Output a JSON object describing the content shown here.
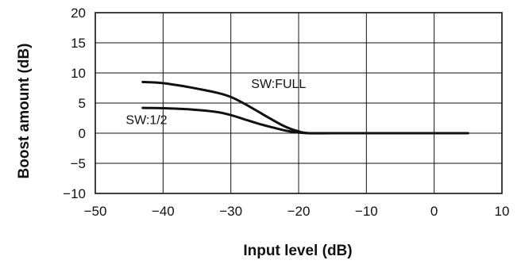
{
  "chart_data": {
    "type": "line",
    "xlabel": "Input level (dB)",
    "ylabel": "Boost amount (dB)",
    "xlim": [
      -50,
      10
    ],
    "ylim": [
      -10,
      20
    ],
    "xticks": [
      -50,
      -40,
      -30,
      -20,
      -10,
      0,
      10
    ],
    "yticks": [
      -10,
      -5,
      0,
      5,
      10,
      15,
      20
    ],
    "xtick_labels": [
      "−50",
      "−40",
      "−30",
      "−20",
      "−10",
      "0",
      "10"
    ],
    "ytick_labels": [
      "−10",
      "−5",
      "0",
      "5",
      "10",
      "15",
      "20"
    ],
    "grid": true,
    "series": [
      {
        "name": "SW:FULL",
        "x": [
          -43,
          -40,
          -36,
          -32,
          -30,
          -28,
          -26,
          -24,
          -22,
          -20,
          -18.5,
          -15,
          -10,
          0,
          5
        ],
        "y": [
          8.5,
          8.3,
          7.6,
          6.7,
          6.0,
          4.9,
          3.6,
          2.3,
          1.1,
          0.3,
          0,
          0,
          0,
          0,
          0
        ]
      },
      {
        "name": "SW:1/2",
        "x": [
          -43,
          -40,
          -36,
          -32,
          -30,
          -28,
          -26,
          -24,
          -22,
          -20,
          -18.5,
          -15,
          -10,
          0,
          5
        ],
        "y": [
          4.2,
          4.15,
          3.95,
          3.5,
          3.0,
          2.3,
          1.6,
          1.0,
          0.45,
          0.1,
          0,
          0,
          0,
          0,
          0
        ]
      }
    ],
    "annotations": [
      {
        "text": "SW:FULL",
        "x": -27,
        "y": 7.5
      },
      {
        "text": "SW:1/2",
        "x": -45.5,
        "y": 1.5
      }
    ]
  }
}
